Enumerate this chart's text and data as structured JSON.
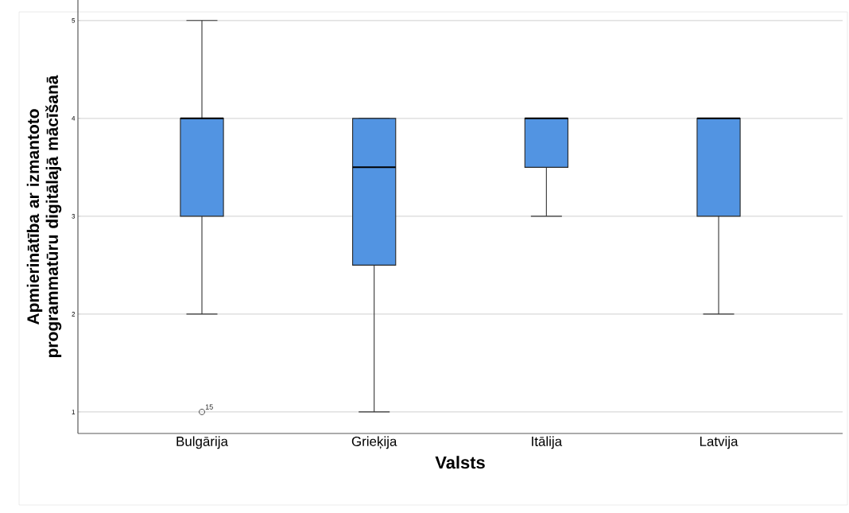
{
  "chart_data": {
    "type": "box",
    "ylabel": "Apmierinātība ar izmantoto programmatūru digitālajā mācīšanā",
    "xlabel": "Valsts",
    "categories": [
      "Bulgārija",
      "Grieķija",
      "Itālija",
      "Latvija"
    ],
    "color": "#5294e2",
    "boxes": [
      {
        "low": 2,
        "q1": 3,
        "median": 4,
        "q3": 4,
        "high": 5,
        "outliers": [
          1
        ]
      },
      {
        "low": 1,
        "q1": 2.5,
        "median": 3.5,
        "q3": 4,
        "high": 4
      },
      {
        "low": 3,
        "q1": 3.5,
        "median": 4,
        "q3": 4,
        "high": 4
      },
      {
        "low": 2,
        "q1": 3,
        "median": 4,
        "q3": 4,
        "high": 4
      }
    ],
    "ylim": [
      0.78,
      5.21
    ],
    "yticks": [
      1,
      2,
      3,
      4,
      5
    ],
    "grid": "y",
    "annotations": [
      "15"
    ]
  }
}
